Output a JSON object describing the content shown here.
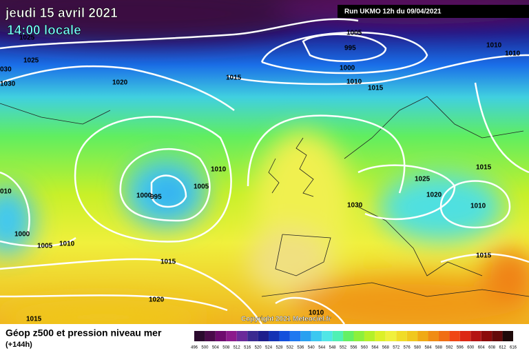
{
  "header": {
    "date": "jeudi 15 avril 2021",
    "time": "14:00 locale",
    "run": "Run UKMO 12h du 09/04/2021"
  },
  "isobar_labels": [
    "1025",
    "1025",
    "030",
    "1030",
    "1020",
    "1015",
    "1005",
    "995",
    "1000",
    "1010",
    "1015",
    "1010",
    "1010",
    "1010",
    "1005",
    "1000",
    "995",
    "010",
    "1000",
    "1005",
    "1010",
    "1025",
    "1020",
    "1030",
    "1015",
    "1010",
    "1015",
    "1015",
    "1020",
    "1010",
    "1015"
  ],
  "copyright": "Copyright 2021 Meteociel.fr",
  "legend": {
    "title": "Géop z500 et pression niveau mer",
    "subtitle": "(+144h)",
    "ticks": [
      496,
      500,
      504,
      508,
      512,
      516,
      520,
      524,
      528,
      532,
      536,
      540,
      544,
      548,
      552,
      556,
      560,
      564,
      568,
      572,
      576,
      580,
      584,
      588,
      592,
      596,
      600,
      604,
      608,
      612,
      616
    ],
    "colors": [
      "#2b0a2e",
      "#4a0a4a",
      "#6e0a6e",
      "#8c1a8c",
      "#6a2a9a",
      "#3a2a90",
      "#1e1e8c",
      "#1432b4",
      "#1450dc",
      "#1e78f0",
      "#28a0f0",
      "#3cc8f0",
      "#50e6e6",
      "#50f0b4",
      "#64f064",
      "#8cf03c",
      "#b4f028",
      "#dcf028",
      "#f0f03c",
      "#f0dc28",
      "#f0c81e",
      "#f0aa14",
      "#f08c14",
      "#f06e14",
      "#f04614",
      "#dc2814",
      "#b41414",
      "#8c0a0a",
      "#640a0a",
      "#1e0a0a"
    ]
  }
}
